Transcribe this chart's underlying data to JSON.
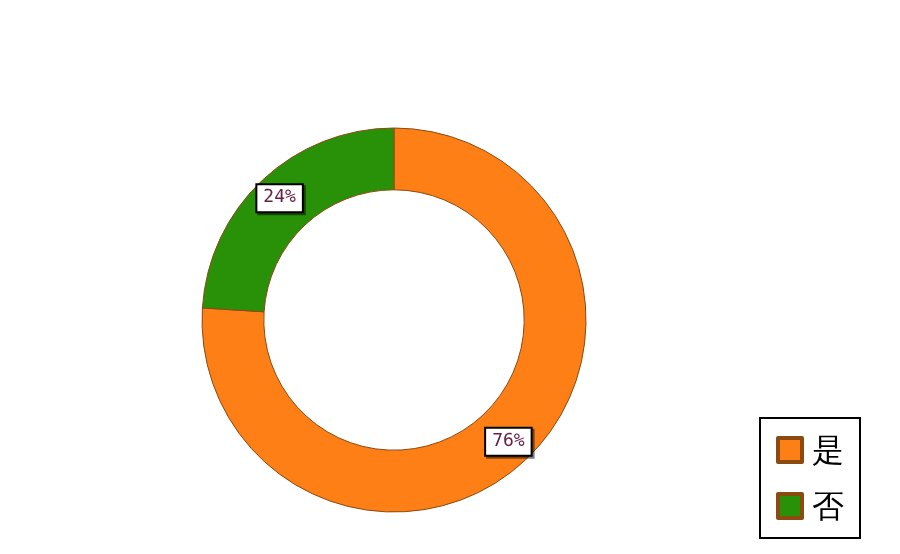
{
  "chart_data": {
    "type": "donut",
    "categories": [
      "是",
      "否"
    ],
    "values": [
      76,
      24
    ],
    "colors": [
      "#ff7f17",
      "#299108"
    ],
    "value_labels": [
      "76%",
      "24%"
    ],
    "legend": "bottom right"
  }
}
